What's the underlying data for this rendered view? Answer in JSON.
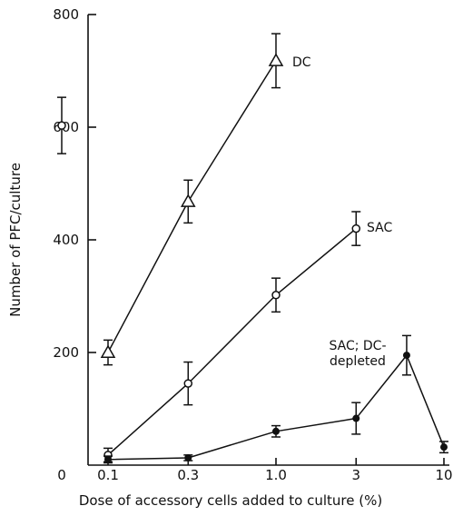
{
  "chart_data": {
    "type": "line",
    "xlabel": "Dose of accessory cells added to culture (%)",
    "ylabel": "Number of PFC/culture",
    "x_scale": "log",
    "x_ticks": [
      "0",
      "0.1",
      "0.3",
      "1.0",
      "3",
      "10"
    ],
    "y_ticks": [
      0,
      200,
      400,
      600,
      800
    ],
    "ylim": [
      0,
      800
    ],
    "series": [
      {
        "name": "DC",
        "marker": "triangle",
        "points": [
          {
            "x": 0.1,
            "y": 200,
            "err": 22
          },
          {
            "x": 0.3,
            "y": 468,
            "err": 38
          },
          {
            "x": 1.0,
            "y": 718,
            "err": 48
          }
        ]
      },
      {
        "name": "SAC",
        "marker": "open-circle",
        "points": [
          {
            "x": 0.1,
            "y": 18,
            "err": 12
          },
          {
            "x": 0.3,
            "y": 145,
            "err": 38
          },
          {
            "x": 1.0,
            "y": 302,
            "err": 30
          },
          {
            "x": 3,
            "y": 420,
            "err": 30
          }
        ]
      },
      {
        "name": "SAC; DC-depleted",
        "marker": "filled-circle",
        "points": [
          {
            "x": 0.1,
            "y": 10,
            "err": 6
          },
          {
            "x": 0.3,
            "y": 13,
            "err": 5
          },
          {
            "x": 1.0,
            "y": 60,
            "err": 10
          },
          {
            "x": 3,
            "y": 83,
            "err": 28
          },
          {
            "x": 6,
            "y": 195,
            "err": 35
          },
          {
            "x": 10,
            "y": 32,
            "err": 10
          }
        ]
      }
    ],
    "standalone_points": [
      {
        "x": 0,
        "y": 603,
        "err": 50,
        "marker": "open-circle"
      }
    ],
    "annotations": [
      "DC",
      "SAC",
      "SAC; DC-",
      "depleted"
    ]
  }
}
